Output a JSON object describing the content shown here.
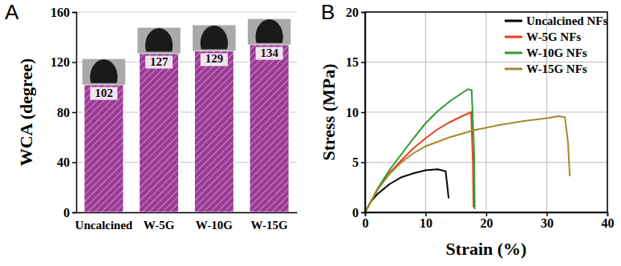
{
  "chart_data": [
    {
      "type": "bar",
      "title": "A",
      "y_label": "WCA (degree)",
      "categories": [
        "Uncalcined",
        "W-5G",
        "W-10G",
        "W-15G"
      ],
      "values": [
        102,
        127,
        129,
        134
      ],
      "color": "#9c3a96",
      "ylim": [
        0,
        160
      ],
      "yticks": [
        0,
        40,
        80,
        120,
        160
      ],
      "grid": true,
      "data_labels": true
    },
    {
      "type": "line",
      "title": "B",
      "x_label": "Strain (%)",
      "y_label": "Stress (MPa)",
      "xlim": [
        0,
        40
      ],
      "xticks": [
        0,
        10,
        20,
        30,
        40
      ],
      "ylim": [
        0,
        20
      ],
      "yticks": [
        0,
        5,
        10,
        15,
        20
      ],
      "grid": true,
      "legend": "upper right",
      "series": [
        {
          "name": "Uncalcined NFs",
          "color": "#000000",
          "x": [
            0,
            1,
            2,
            4,
            6,
            8,
            10,
            12,
            13.3,
            13.6,
            13.8
          ],
          "values": [
            0,
            1.1,
            1.8,
            2.8,
            3.5,
            3.9,
            4.2,
            4.3,
            4.1,
            2.5,
            1.4
          ]
        },
        {
          "name": "W-5G NFs",
          "color": "#e8401c",
          "x": [
            0,
            2,
            4,
            6,
            8,
            10,
            12,
            14,
            16,
            17.5,
            17.8,
            17.9
          ],
          "values": [
            0,
            2.2,
            3.9,
            5.2,
            6.4,
            7.4,
            8.3,
            9.0,
            9.6,
            10.0,
            5.0,
            0.5
          ]
        },
        {
          "name": "W-10G NFs",
          "color": "#2e9a2e",
          "x": [
            0,
            2,
            4,
            6,
            8,
            10,
            12,
            14,
            16,
            17,
            17.6,
            18,
            18.1
          ],
          "values": [
            0,
            2.3,
            4.2,
            5.8,
            7.4,
            8.9,
            10.1,
            11.1,
            11.9,
            12.3,
            12.2,
            6.0,
            0.3
          ]
        },
        {
          "name": "W-15G NFs",
          "color": "#a08a2a",
          "x": [
            0,
            2,
            4,
            6,
            8,
            10,
            14,
            18,
            22,
            26,
            30,
            32,
            33,
            33.5,
            33.8
          ],
          "values": [
            0,
            2.2,
            3.8,
            5.0,
            5.9,
            6.6,
            7.5,
            8.2,
            8.7,
            9.1,
            9.4,
            9.6,
            9.5,
            7.0,
            3.6
          ]
        }
      ]
    }
  ]
}
